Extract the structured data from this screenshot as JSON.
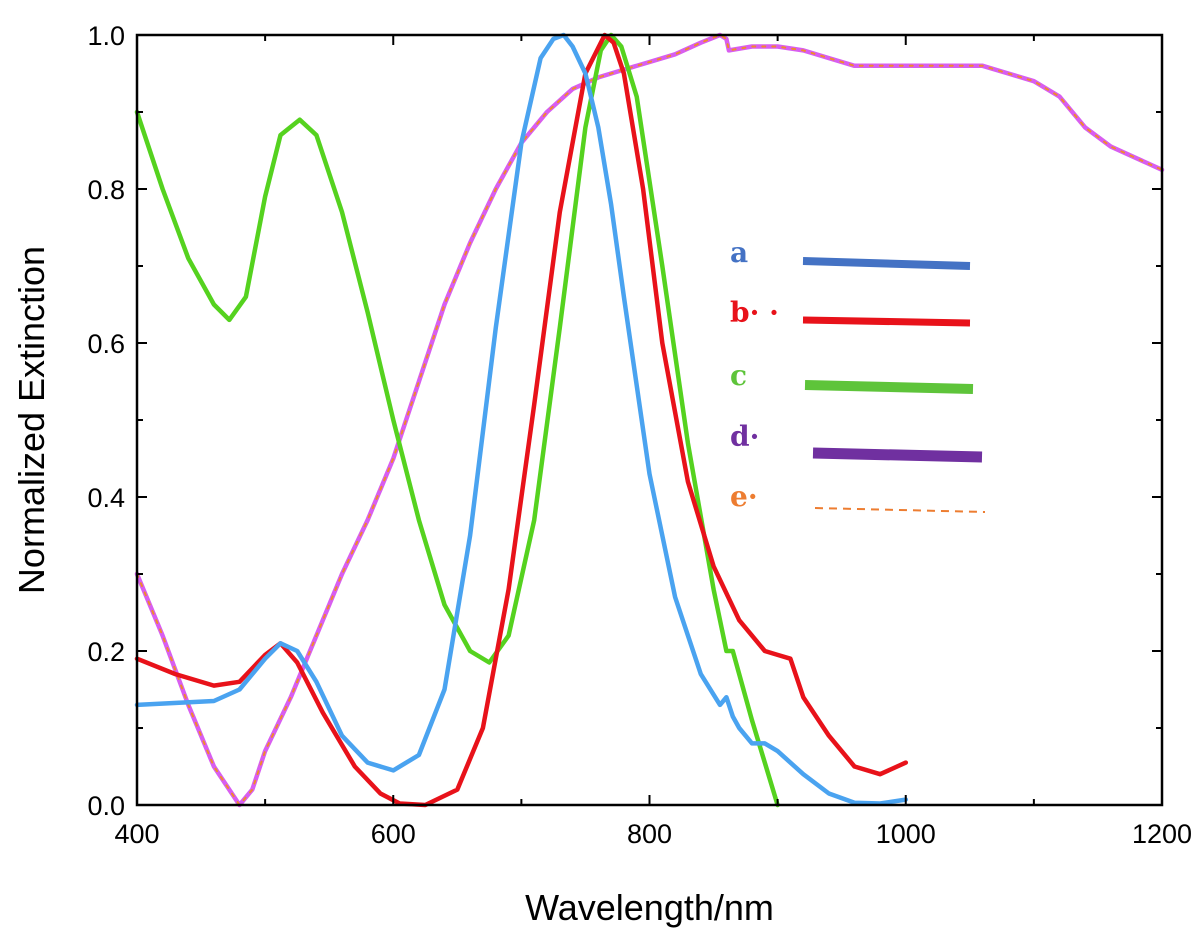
{
  "chart_data": {
    "type": "line",
    "title": "",
    "xlabel": "Wavelength/nm",
    "ylabel": "Normalized Extinction",
    "xlim": [
      400,
      1200
    ],
    "ylim": [
      0,
      1.0
    ],
    "x_ticks": [
      400,
      600,
      800,
      1000,
      1200
    ],
    "x_tick_labels": [
      "400",
      "600",
      "800",
      "1000",
      "1200"
    ],
    "y_ticks": [
      0,
      0.2,
      0.4,
      0.6,
      0.8,
      1.0
    ],
    "y_tick_labels": [
      "0.0",
      "0.2",
      "0.4",
      "0.6",
      "0.8",
      "1.0"
    ],
    "x_minor_ticks": [
      500,
      700,
      900,
      1100
    ],
    "y_minor_ticks": [
      0.1,
      0.3,
      0.5,
      0.7,
      0.9
    ],
    "grid": false,
    "legend_position": "right-center",
    "series": [
      {
        "name": "a",
        "legend_label": "a",
        "color": "#4aa3f0",
        "legend_color": "#4472c4",
        "style": "solid",
        "x": [
          400,
          460,
          480,
          500,
          512,
          525,
          540,
          560,
          580,
          600,
          620,
          640,
          660,
          680,
          700,
          715,
          725,
          733,
          740,
          750,
          760,
          770,
          780,
          800,
          820,
          840,
          855,
          860,
          865,
          870,
          880,
          890,
          900,
          920,
          940,
          960,
          980,
          1000
        ],
        "y": [
          0.13,
          0.135,
          0.15,
          0.19,
          0.21,
          0.2,
          0.16,
          0.09,
          0.055,
          0.045,
          0.065,
          0.15,
          0.35,
          0.62,
          0.86,
          0.97,
          0.995,
          1.0,
          0.985,
          0.95,
          0.88,
          0.78,
          0.66,
          0.43,
          0.27,
          0.17,
          0.13,
          0.14,
          0.115,
          0.1,
          0.08,
          0.08,
          0.07,
          0.04,
          0.015,
          0.003,
          0.002,
          0.007
        ]
      },
      {
        "name": "b",
        "legend_label": "b· ·",
        "color": "#e8121a",
        "legend_color": "#e8121a",
        "style": "solid",
        "x": [
          400,
          430,
          460,
          480,
          500,
          512,
          525,
          545,
          570,
          590,
          605,
          625,
          650,
          670,
          690,
          710,
          730,
          750,
          765,
          772,
          780,
          795,
          810,
          830,
          850,
          870,
          890,
          900,
          910,
          920,
          940,
          960,
          980,
          1000
        ],
        "y": [
          0.19,
          0.17,
          0.155,
          0.16,
          0.195,
          0.21,
          0.185,
          0.12,
          0.05,
          0.015,
          0.002,
          0.0,
          0.02,
          0.1,
          0.28,
          0.52,
          0.77,
          0.95,
          1.0,
          0.99,
          0.95,
          0.8,
          0.6,
          0.42,
          0.31,
          0.24,
          0.2,
          0.195,
          0.19,
          0.14,
          0.09,
          0.05,
          0.04,
          0.055
        ]
      },
      {
        "name": "c",
        "legend_label": "c",
        "color": "#55d21f",
        "legend_color": "#5ec43a",
        "style": "solid",
        "x": [
          400,
          420,
          440,
          460,
          472,
          485,
          500,
          512,
          527,
          540,
          560,
          580,
          600,
          620,
          640,
          660,
          675,
          690,
          710,
          730,
          750,
          762,
          770,
          778,
          790,
          810,
          830,
          850,
          860,
          865,
          870,
          880,
          890,
          900
        ],
        "y": [
          0.9,
          0.8,
          0.71,
          0.65,
          0.63,
          0.66,
          0.79,
          0.87,
          0.89,
          0.87,
          0.77,
          0.64,
          0.5,
          0.37,
          0.26,
          0.2,
          0.185,
          0.22,
          0.37,
          0.62,
          0.88,
          0.98,
          1.0,
          0.985,
          0.92,
          0.7,
          0.47,
          0.28,
          0.2,
          0.2,
          0.17,
          0.11,
          0.055,
          0.0
        ]
      },
      {
        "name": "d",
        "legend_label": "d·",
        "color": "#d85ef0",
        "legend_color": "#7030a0",
        "style": "solid",
        "x": [
          400,
          420,
          440,
          460,
          480,
          490,
          500,
          520,
          540,
          560,
          580,
          600,
          620,
          640,
          660,
          680,
          700,
          720,
          740,
          760,
          780,
          800,
          820,
          840,
          855,
          860,
          862,
          880,
          900,
          920,
          940,
          960,
          980,
          1000,
          1020,
          1040,
          1060,
          1080,
          1100,
          1120,
          1140,
          1160,
          1180,
          1200
        ],
        "y": [
          0.3,
          0.22,
          0.13,
          0.05,
          0.0,
          0.02,
          0.07,
          0.14,
          0.22,
          0.3,
          0.37,
          0.45,
          0.55,
          0.65,
          0.73,
          0.8,
          0.86,
          0.9,
          0.93,
          0.945,
          0.955,
          0.965,
          0.975,
          0.99,
          1.0,
          0.995,
          0.98,
          0.985,
          0.985,
          0.98,
          0.97,
          0.96,
          0.96,
          0.96,
          0.96,
          0.96,
          0.96,
          0.95,
          0.94,
          0.92,
          0.88,
          0.855,
          0.84,
          0.825
        ]
      },
      {
        "name": "e",
        "legend_label": "e·",
        "color": "#f08a2a",
        "legend_color": "#ed7d31",
        "style": "dashed",
        "x": [
          400,
          420,
          440,
          460,
          480,
          490,
          500,
          520,
          540,
          560,
          580,
          600,
          620,
          640,
          660,
          680,
          700,
          720,
          740,
          760,
          780,
          800,
          820,
          840,
          855,
          860,
          862,
          880,
          900,
          920,
          940,
          960,
          980,
          1000,
          1020,
          1040,
          1060,
          1080,
          1100,
          1120,
          1140,
          1160,
          1180,
          1200
        ],
        "y": [
          0.3,
          0.22,
          0.13,
          0.05,
          0.0,
          0.02,
          0.07,
          0.14,
          0.22,
          0.3,
          0.37,
          0.45,
          0.55,
          0.65,
          0.73,
          0.8,
          0.86,
          0.9,
          0.93,
          0.945,
          0.955,
          0.965,
          0.975,
          0.99,
          1.0,
          0.995,
          0.98,
          0.985,
          0.985,
          0.98,
          0.97,
          0.96,
          0.96,
          0.96,
          0.96,
          0.96,
          0.96,
          0.95,
          0.94,
          0.92,
          0.88,
          0.855,
          0.84,
          0.825
        ]
      }
    ]
  }
}
